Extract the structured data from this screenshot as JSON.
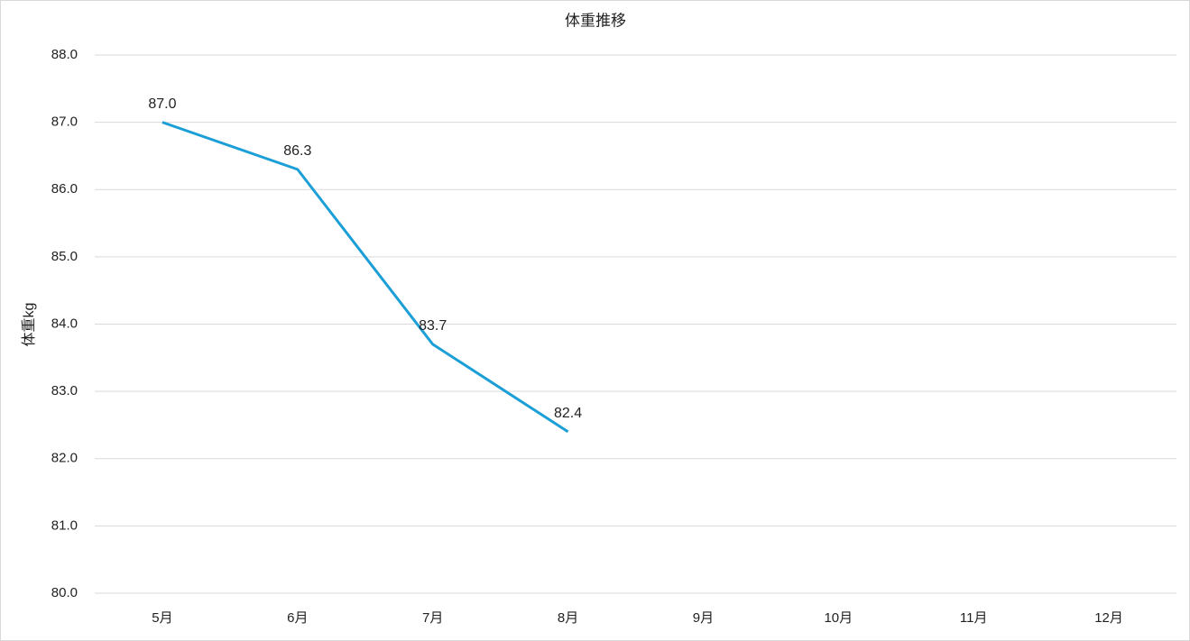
{
  "chart_data": {
    "type": "line",
    "title": "体重推移",
    "y_label": "体重kg",
    "categories": [
      "5月",
      "6月",
      "7月",
      "8月",
      "9月",
      "10月",
      "11月",
      "12月"
    ],
    "series": [
      {
        "name": "体重",
        "color": "#1b9fd6",
        "values": [
          87.0,
          86.3,
          83.7,
          82.4,
          null,
          null,
          null,
          null
        ],
        "value_labels": [
          "87.0",
          "86.3",
          "83.7",
          "82.4",
          null,
          null,
          null,
          null
        ]
      }
    ],
    "ylim": [
      80,
      88
    ],
    "yticks": [
      {
        "value": 80,
        "label": "80.0"
      },
      {
        "value": 81,
        "label": "81.0"
      },
      {
        "value": 82,
        "label": "82.0"
      },
      {
        "value": 83,
        "label": "83.0"
      },
      {
        "value": 84,
        "label": "84.0"
      },
      {
        "value": 85,
        "label": "85.0"
      },
      {
        "value": 86,
        "label": "86.0"
      },
      {
        "value": 87,
        "label": "87.0"
      },
      {
        "value": 88,
        "label": "88.0"
      }
    ],
    "grid": true
  }
}
